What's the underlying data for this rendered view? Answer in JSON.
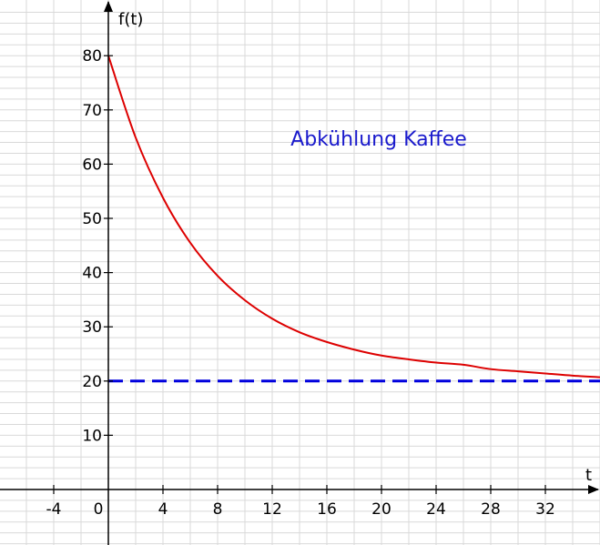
{
  "chart_data": {
    "type": "line",
    "title": "Abkühlung Kaffee",
    "xlabel": "t",
    "ylabel": "f(t)",
    "xlim": [
      -8,
      36
    ],
    "ylim": [
      -10,
      88
    ],
    "x_ticks": [
      -4,
      0,
      4,
      8,
      12,
      16,
      20,
      24,
      28,
      32
    ],
    "y_ticks": [
      10,
      20,
      30,
      40,
      50,
      60,
      70,
      80
    ],
    "grid": true,
    "colors": {
      "curve": "#dd0000",
      "asymptote": "#0000dd",
      "title": "#1a1acc",
      "grid": "#d9d9d9"
    },
    "series": [
      {
        "style": "solid",
        "color": "#dd0000",
        "x": [
          0,
          2,
          4,
          6,
          8,
          10,
          12,
          14,
          16,
          18,
          20,
          22,
          24,
          26,
          28,
          30,
          32,
          34,
          36
        ],
        "y": [
          80,
          64.9,
          53.8,
          45.5,
          39.4,
          34.9,
          31.5,
          29.0,
          27.2,
          25.8,
          24.7,
          24.0,
          23.4,
          23.0,
          22.2,
          21.8,
          21.4,
          21.0,
          20.7
        ]
      },
      {
        "style": "dashed",
        "color": "#0000dd",
        "x": [
          0,
          36
        ],
        "y": [
          20,
          20
        ]
      }
    ]
  }
}
